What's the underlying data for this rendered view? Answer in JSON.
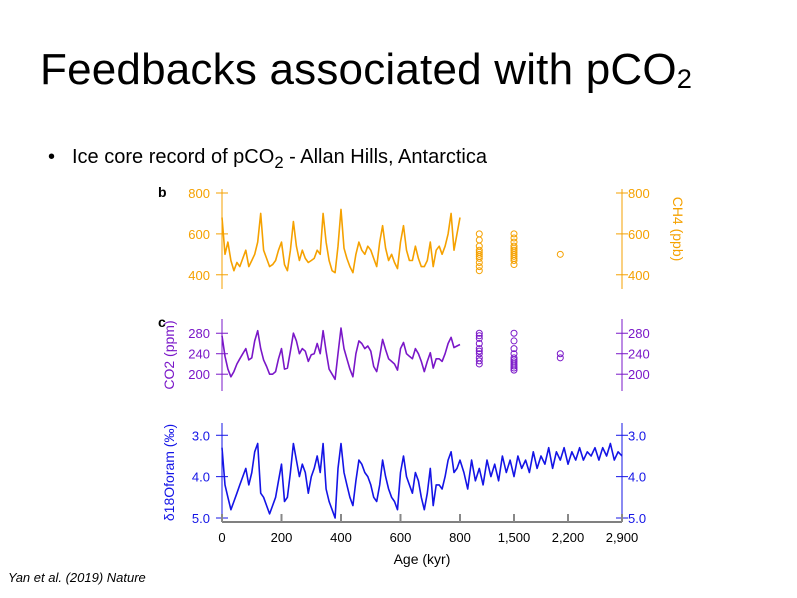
{
  "slide": {
    "title_main": "Feedbacks associated with pCO",
    "title_sub": "2",
    "bullet_symbol": "•",
    "bullet_pre": "Ice core record of pCO",
    "bullet_sub": "2",
    "bullet_post": " - Allan Hills, Antarctica",
    "citation": "Yan et al. (2019) Nature"
  },
  "colors": {
    "ch4": "#F5A100",
    "co2": "#7A17C8",
    "d18o": "#1414E6",
    "axis_gray": "#888888"
  },
  "chart_data": [
    {
      "panel_label": "b",
      "type": "line",
      "ylabel_right": "CH4 (ppb)",
      "ylim": [
        350,
        800
      ],
      "yticks": [
        "800",
        "600",
        "400"
      ],
      "xlim": [
        0,
        2900
      ],
      "series": [
        {
          "x": [
            0,
            10,
            20,
            30,
            40,
            50,
            60,
            70,
            80,
            90,
            100,
            110,
            120,
            130,
            140,
            150,
            160,
            170,
            180,
            190,
            200,
            210,
            220,
            230,
            240,
            250,
            260,
            270,
            280,
            290,
            300,
            310,
            320,
            330,
            340,
            350,
            360,
            370,
            380,
            390,
            400,
            410,
            420,
            430,
            440,
            450,
            460,
            470,
            480,
            490,
            500,
            510,
            520,
            530,
            540,
            550,
            560,
            570,
            580,
            590,
            600,
            610,
            620,
            630,
            640,
            650,
            660,
            670,
            680,
            690,
            700,
            710,
            720,
            730,
            740,
            750,
            760,
            770,
            780,
            790,
            800
          ],
          "values": [
            680,
            500,
            560,
            470,
            420,
            460,
            440,
            480,
            520,
            440,
            470,
            500,
            560,
            700,
            520,
            480,
            440,
            450,
            470,
            520,
            560,
            450,
            420,
            520,
            660,
            540,
            470,
            520,
            480,
            460,
            470,
            480,
            520,
            500,
            700,
            560,
            470,
            420,
            410,
            540,
            720,
            530,
            480,
            440,
            410,
            500,
            560,
            520,
            500,
            540,
            520,
            480,
            440,
            560,
            640,
            530,
            470,
            500,
            460,
            430,
            560,
            640,
            520,
            470,
            470,
            540,
            480,
            440,
            440,
            470,
            560,
            440,
            520,
            540,
            500,
            540,
            600,
            700,
            520,
            600,
            680
          ]
        }
      ],
      "scatter": {
        "x": [
          1050,
          1050,
          1050,
          1050,
          1050,
          1050,
          1050,
          1050,
          1050,
          1050,
          1050,
          1500,
          1500,
          1500,
          1500,
          1500,
          1500,
          1500,
          1500,
          1500,
          1500,
          1500,
          1500,
          2100
        ],
        "values": [
          600,
          570,
          540,
          520,
          510,
          500,
          490,
          480,
          460,
          440,
          420,
          600,
          580,
          560,
          540,
          530,
          520,
          510,
          500,
          490,
          480,
          470,
          450,
          500
        ]
      }
    },
    {
      "panel_label": "c",
      "type": "line",
      "ylabel_left": "CO2 (ppm)",
      "ylim": [
        175,
        300
      ],
      "yticks": [
        "280",
        "240",
        "200"
      ],
      "xlim": [
        0,
        2900
      ],
      "series": [
        {
          "x": [
            0,
            10,
            20,
            30,
            40,
            50,
            60,
            70,
            80,
            90,
            100,
            110,
            120,
            130,
            140,
            150,
            160,
            170,
            180,
            190,
            200,
            210,
            220,
            230,
            240,
            250,
            260,
            270,
            280,
            290,
            300,
            310,
            320,
            330,
            340,
            350,
            360,
            370,
            380,
            390,
            400,
            410,
            420,
            430,
            440,
            450,
            460,
            470,
            480,
            490,
            500,
            510,
            520,
            530,
            540,
            550,
            560,
            570,
            580,
            590,
            600,
            610,
            620,
            630,
            640,
            650,
            660,
            670,
            680,
            690,
            700,
            710,
            720,
            730,
            740,
            750,
            760,
            770,
            780,
            790,
            800
          ],
          "values": [
            275,
            235,
            210,
            195,
            205,
            220,
            230,
            240,
            250,
            228,
            232,
            265,
            285,
            250,
            228,
            215,
            200,
            200,
            205,
            230,
            250,
            210,
            212,
            245,
            280,
            265,
            240,
            250,
            245,
            225,
            238,
            240,
            260,
            240,
            285,
            245,
            210,
            200,
            190,
            240,
            290,
            250,
            230,
            210,
            195,
            240,
            265,
            260,
            250,
            255,
            245,
            215,
            205,
            235,
            268,
            248,
            230,
            225,
            220,
            208,
            250,
            262,
            240,
            235,
            230,
            250,
            240,
            225,
            205,
            225,
            242,
            212,
            230,
            230,
            225,
            240,
            260,
            272,
            252,
            255,
            258
          ]
        }
      ],
      "scatter": {
        "x": [
          1050,
          1050,
          1050,
          1050,
          1050,
          1050,
          1050,
          1050,
          1050,
          1050,
          1500,
          1500,
          1500,
          1500,
          1500,
          1500,
          1500,
          1500,
          1500,
          1500,
          1500,
          2100,
          2100
        ],
        "values": [
          280,
          275,
          270,
          260,
          250,
          245,
          240,
          232,
          226,
          220,
          280,
          265,
          250,
          240,
          232,
          228,
          224,
          220,
          216,
          212,
          208,
          240,
          232
        ]
      }
    },
    {
      "panel_label": "",
      "type": "line",
      "ylabel_left": "δ18Oforam (‰)",
      "ylim": [
        5.0,
        2.8
      ],
      "y_inverted": true,
      "yticks": [
        "3.0",
        "4.0",
        "5.0"
      ],
      "xlabel": "Age (kyr)",
      "xticks": [
        "0",
        "200",
        "400",
        "600",
        "800",
        "1,500",
        "2,200",
        "2,900"
      ],
      "xlim": [
        0,
        2900
      ],
      "series": [
        {
          "x": [
            0,
            10,
            20,
            30,
            40,
            50,
            60,
            70,
            80,
            90,
            100,
            110,
            120,
            130,
            140,
            150,
            160,
            170,
            180,
            190,
            200,
            210,
            220,
            230,
            240,
            250,
            260,
            270,
            280,
            290,
            300,
            310,
            320,
            330,
            340,
            350,
            360,
            370,
            380,
            390,
            400,
            410,
            420,
            430,
            440,
            450,
            460,
            470,
            480,
            490,
            500,
            510,
            520,
            530,
            540,
            550,
            560,
            570,
            580,
            590,
            600,
            610,
            620,
            630,
            640,
            650,
            660,
            670,
            680,
            690,
            700,
            710,
            720,
            730,
            740,
            750,
            760,
            770,
            780,
            790,
            800,
            850,
            900,
            950,
            1000,
            1050,
            1100,
            1150,
            1200,
            1250,
            1300,
            1350,
            1400,
            1450,
            1500,
            1550,
            1600,
            1650,
            1700,
            1750,
            1800,
            1850,
            1900,
            1950,
            2000,
            2050,
            2100,
            2150,
            2200,
            2250,
            2300,
            2350,
            2400,
            2450,
            2500,
            2550,
            2600,
            2650,
            2700,
            2750,
            2800,
            2850,
            2900
          ],
          "values": [
            3.3,
            4.2,
            4.5,
            4.8,
            4.6,
            4.4,
            4.2,
            4.0,
            3.8,
            4.2,
            3.9,
            3.4,
            3.2,
            4.4,
            4.5,
            4.7,
            4.9,
            4.7,
            4.5,
            4.1,
            3.7,
            4.6,
            4.5,
            3.9,
            3.2,
            3.6,
            4.0,
            3.7,
            3.9,
            4.4,
            4.0,
            3.8,
            3.5,
            3.9,
            3.2,
            4.3,
            4.6,
            4.8,
            5.0,
            3.8,
            3.2,
            3.9,
            4.2,
            4.5,
            4.7,
            4.1,
            3.6,
            3.7,
            3.9,
            4.0,
            4.2,
            4.5,
            4.6,
            4.2,
            3.6,
            4.0,
            4.3,
            4.5,
            4.6,
            4.8,
            3.9,
            3.5,
            4.0,
            4.2,
            4.4,
            3.9,
            4.1,
            4.5,
            4.8,
            4.4,
            3.8,
            4.7,
            4.2,
            4.2,
            4.3,
            4.0,
            3.6,
            3.4,
            3.9,
            3.8,
            3.6,
            3.9,
            4.3,
            3.6,
            4.1,
            3.8,
            4.2,
            3.6,
            4.0,
            3.7,
            4.1,
            3.5,
            3.9,
            3.6,
            4.0,
            3.5,
            3.8,
            3.6,
            3.9,
            3.4,
            3.8,
            3.5,
            3.7,
            3.3,
            3.8,
            3.4,
            3.6,
            3.3,
            3.7,
            3.4,
            3.6,
            3.3,
            3.6,
            3.4,
            3.5,
            3.3,
            3.6,
            3.3,
            3.5,
            3.2,
            3.6,
            3.4,
            3.5
          ]
        }
      ]
    }
  ]
}
